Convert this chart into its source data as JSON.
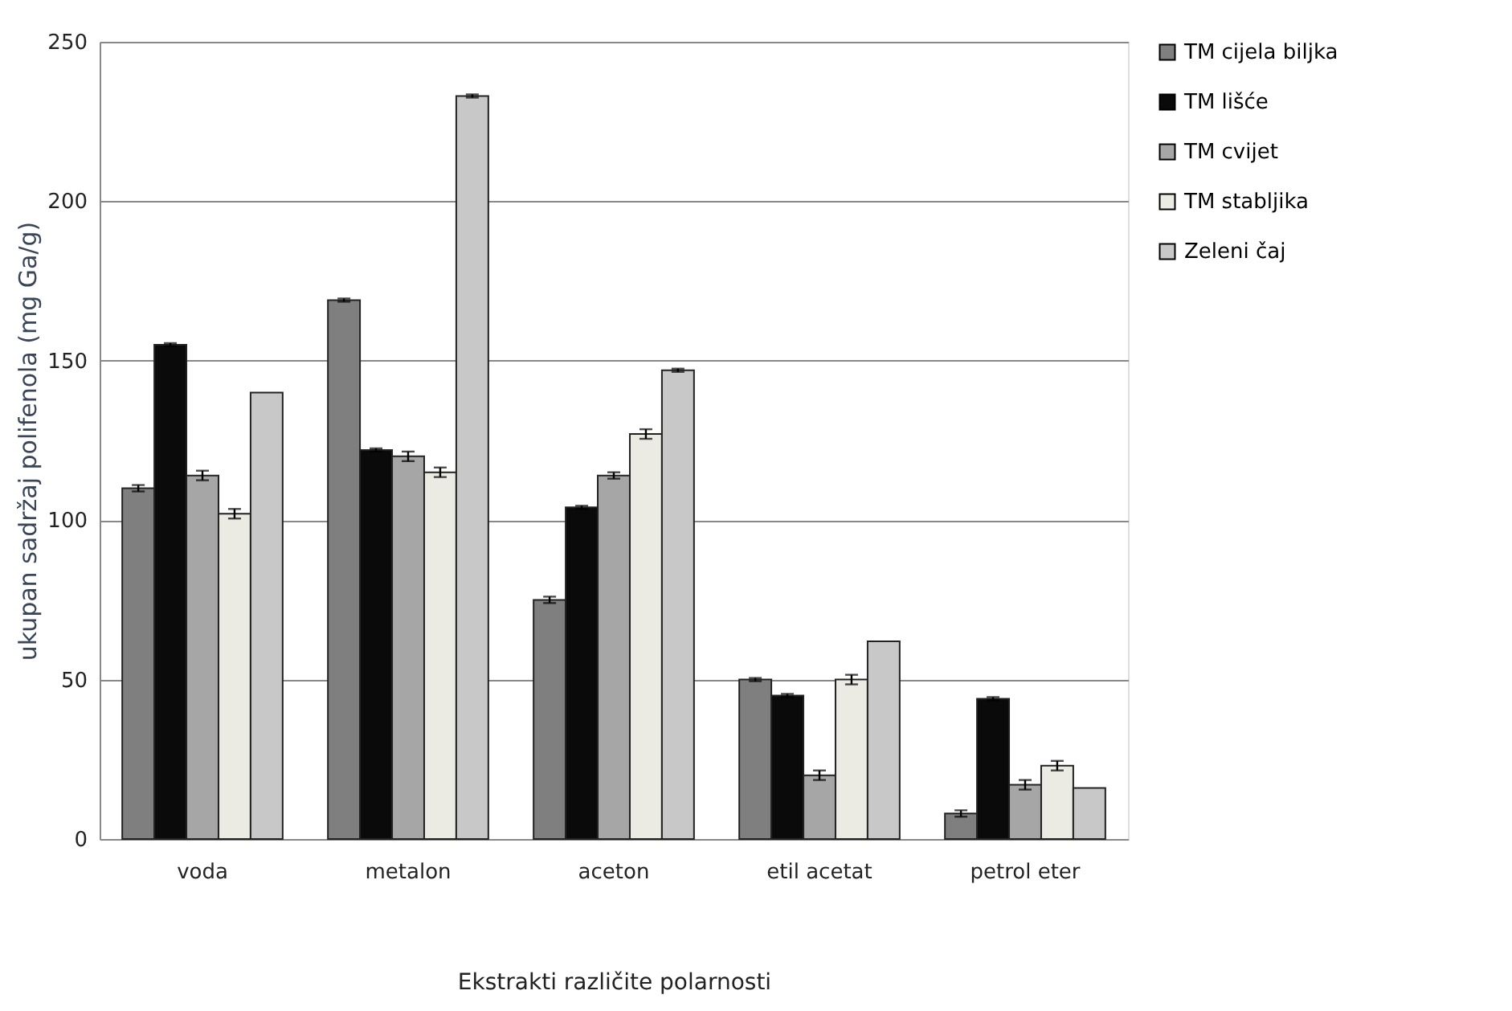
{
  "chart_data": {
    "type": "bar",
    "ylabel": "ukupan sadržaj polifenola (mg Ga/g)",
    "xlabel": "Ekstrakti različite polarnosti",
    "categories": [
      "voda",
      "metalon",
      "aceton",
      "etil acetat",
      "petrol eter"
    ],
    "series": [
      {
        "name": "TM cijela biljka",
        "color": "#7f7f7f",
        "values": [
          110,
          169,
          75,
          50,
          8
        ],
        "errors": [
          1,
          0.5,
          1,
          0.5,
          1
        ]
      },
      {
        "name": "TM lišće",
        "color": "#0a0a0a",
        "values": [
          155,
          122,
          104,
          45,
          44
        ],
        "errors": [
          0.5,
          0.5,
          0.5,
          0.5,
          0.5
        ]
      },
      {
        "name": "TM cvijet",
        "color": "#a6a6a6",
        "values": [
          114,
          120,
          114,
          20,
          17
        ],
        "errors": [
          1.5,
          1.5,
          1,
          1.5,
          1.5
        ]
      },
      {
        "name": "TM stabljika",
        "color": "#ebebe3",
        "values": [
          102,
          115,
          127,
          50,
          23
        ],
        "errors": [
          1.5,
          1.5,
          1.5,
          1.5,
          1.5
        ]
      },
      {
        "name": "Zeleni čaj",
        "color": "#c8c8c8",
        "values": [
          140,
          233,
          147,
          62,
          16
        ],
        "errors": [
          null,
          0.5,
          0.5,
          null,
          null
        ]
      }
    ],
    "ylim": [
      0,
      250
    ],
    "yticks": [
      0,
      50,
      100,
      150,
      200,
      250
    ],
    "grid": "y",
    "legend": "right"
  }
}
